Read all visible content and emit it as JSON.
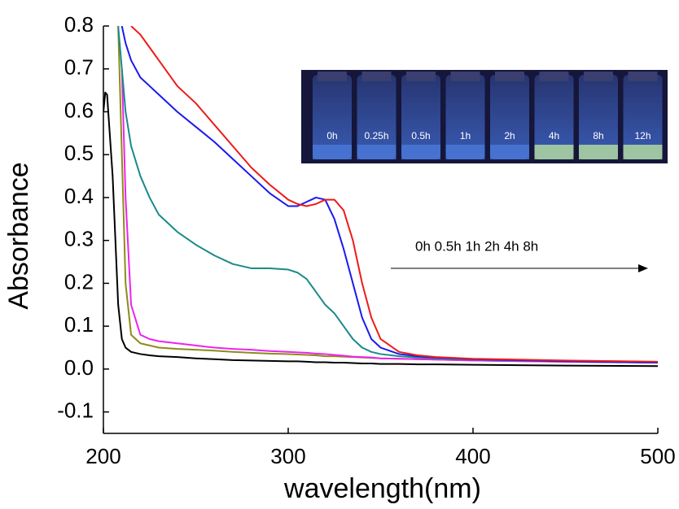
{
  "chart_data": {
    "type": "line",
    "xlabel": "wavelength(nm)",
    "ylabel": "Absorbance",
    "annotation": "0h 0.5h  1h  2h 4h 8h",
    "inset_labels": [
      "0h",
      "0.25h",
      "0.5h",
      "1h",
      "2h",
      "4h",
      "8h",
      "12h"
    ],
    "x": [
      200,
      201,
      202,
      205,
      208,
      210,
      212,
      215,
      220,
      225,
      230,
      240,
      250,
      260,
      270,
      280,
      290,
      300,
      305,
      310,
      315,
      320,
      325,
      330,
      335,
      340,
      345,
      350,
      360,
      370,
      380,
      400,
      450,
      500
    ],
    "series": [
      {
        "color": "#000000",
        "values": [
          0.6,
          0.645,
          0.64,
          0.45,
          0.15,
          0.07,
          0.05,
          0.04,
          0.035,
          0.032,
          0.03,
          0.028,
          0.025,
          0.023,
          0.021,
          0.02,
          0.019,
          0.018,
          0.018,
          0.017,
          0.016,
          0.016,
          0.015,
          0.015,
          0.014,
          0.013,
          0.013,
          0.012,
          0.012,
          0.011,
          0.011,
          0.01,
          0.008,
          0.007
        ]
      },
      {
        "color": "#8c8c1a",
        "values": [
          null,
          null,
          null,
          null,
          0.8,
          0.5,
          0.2,
          0.08,
          0.06,
          0.055,
          0.05,
          0.047,
          0.045,
          0.043,
          0.04,
          0.038,
          0.036,
          0.035,
          0.034,
          0.033,
          0.032,
          0.03,
          0.03,
          0.029,
          0.028,
          0.027,
          0.026,
          0.025,
          0.024,
          0.023,
          0.022,
          0.02,
          0.017,
          0.015
        ]
      },
      {
        "color": "#ee22ee",
        "values": [
          null,
          null,
          null,
          null,
          null,
          0.7,
          0.4,
          0.15,
          0.08,
          0.07,
          0.065,
          0.06,
          0.055,
          0.05,
          0.047,
          0.045,
          0.042,
          0.04,
          0.039,
          0.038,
          0.036,
          0.035,
          0.033,
          0.031,
          0.029,
          0.028,
          0.027,
          0.025,
          0.024,
          0.023,
          0.022,
          0.02,
          0.017,
          0.015
        ]
      },
      {
        "color": "#1a8a8a",
        "values": [
          null,
          null,
          null,
          null,
          0.8,
          0.7,
          0.6,
          0.52,
          0.45,
          0.4,
          0.36,
          0.32,
          0.29,
          0.265,
          0.245,
          0.235,
          0.235,
          0.232,
          0.225,
          0.21,
          0.18,
          0.15,
          0.13,
          0.1,
          0.07,
          0.05,
          0.04,
          0.035,
          0.03,
          0.027,
          0.025,
          0.022,
          0.018,
          0.015
        ]
      },
      {
        "color": "#1a1aee",
        "values": [
          null,
          null,
          null,
          null,
          null,
          0.8,
          0.76,
          0.72,
          0.68,
          0.66,
          0.64,
          0.6,
          0.565,
          0.53,
          0.49,
          0.45,
          0.41,
          0.38,
          0.38,
          0.39,
          0.4,
          0.395,
          0.35,
          0.28,
          0.2,
          0.12,
          0.07,
          0.05,
          0.035,
          0.03,
          0.027,
          0.023,
          0.018,
          0.015
        ]
      },
      {
        "color": "#ee1a1a",
        "values": [
          null,
          null,
          null,
          null,
          null,
          null,
          null,
          0.8,
          0.78,
          0.75,
          0.72,
          0.66,
          0.62,
          0.57,
          0.52,
          0.47,
          0.43,
          0.395,
          0.385,
          0.38,
          0.385,
          0.395,
          0.395,
          0.37,
          0.3,
          0.2,
          0.12,
          0.07,
          0.04,
          0.032,
          0.028,
          0.024,
          0.02,
          0.017
        ]
      }
    ],
    "xlim": [
      200,
      500
    ],
    "xticks": [
      200,
      300,
      400,
      500
    ],
    "ylim": [
      -0.15,
      0.8
    ],
    "yticks": [
      -0.1,
      {
        "value": 0,
        "label": "0.0"
      },
      0.1,
      0.2,
      0.3,
      0.4,
      0.5,
      0.6,
      0.7,
      0.8
    ]
  }
}
